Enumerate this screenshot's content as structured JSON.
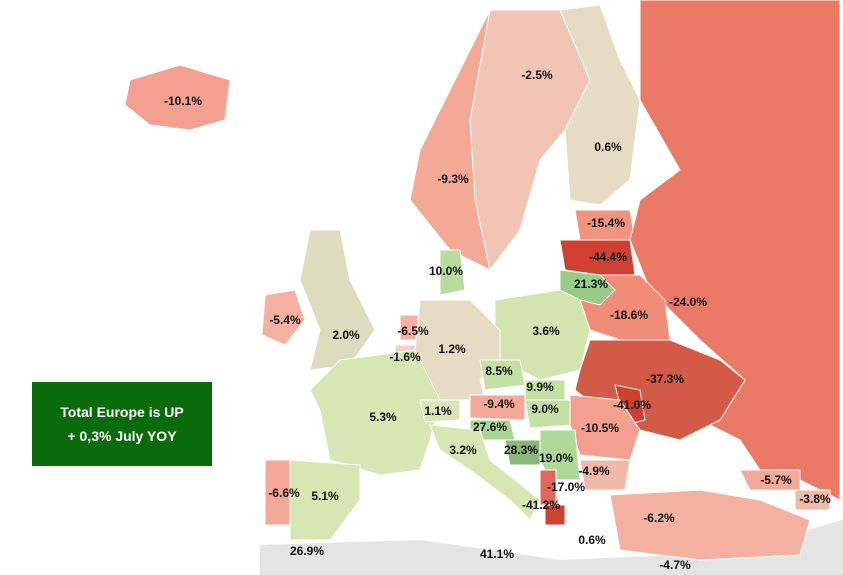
{
  "regions": [
    {
      "label": "-10.1%",
      "color": "#f4a090"
    },
    {
      "label": "-2.5%",
      "color": "#f2c4b4"
    },
    {
      "label": "0.6%",
      "color": "#e6dcc4"
    },
    {
      "label": "-9.3%",
      "color": "#f4a896"
    },
    {
      "label": "-15.4%",
      "color": "#f09480"
    },
    {
      "label": "-44.4%",
      "color": "#d04030"
    },
    {
      "label": "10.0%",
      "color": "#b8dca0"
    },
    {
      "label": "21.3%",
      "color": "#98cc88"
    },
    {
      "label": "-24.0%",
      "color": "#ea7a66"
    },
    {
      "label": "-18.6%",
      "color": "#f08c78"
    },
    {
      "label": "-5.4%",
      "color": "#f4b0a0"
    },
    {
      "label": "2.0%",
      "color": "#dedcbe"
    },
    {
      "label": "-6.5%",
      "color": "#f4b0a0"
    },
    {
      "label": "3.6%",
      "color": "#d4e4b0"
    },
    {
      "label": "-1.6%",
      "color": "#f2d0c4"
    },
    {
      "label": "1.2%",
      "color": "#e6dcc4"
    },
    {
      "label": "-37.3%",
      "color": "#d45a48"
    },
    {
      "label": "8.5%",
      "color": "#c4e0a4"
    },
    {
      "label": "9.9%",
      "color": "#c4e0a4"
    },
    {
      "label": "5.3%",
      "color": "#d8e6b4"
    },
    {
      "label": "1.1%",
      "color": "#dce4b8"
    },
    {
      "label": "-9.4%",
      "color": "#f4a898"
    },
    {
      "label": "9.0%",
      "color": "#c4e0a4"
    },
    {
      "label": "-41.0%",
      "color": "#cc4030"
    },
    {
      "label": "-10.5%",
      "color": "#f4a090"
    },
    {
      "label": "27.6%",
      "color": "#a8d494"
    },
    {
      "label": "3.2%",
      "color": "#d8e6b4"
    },
    {
      "label": "28.3%",
      "color": "#88b878"
    },
    {
      "label": "19.0%",
      "color": "#b0d898"
    },
    {
      "label": "-4.9%",
      "color": "#f2b8a8"
    },
    {
      "label": "-5.7%",
      "color": "#f4a898"
    },
    {
      "label": "-3.8%",
      "color": "#f2b8a8"
    },
    {
      "label": "-6.6%",
      "color": "#f4a898"
    },
    {
      "label": "5.1%",
      "color": "#d8e6b4"
    },
    {
      "label": "-17.0%",
      "color": "#e06858"
    },
    {
      "label": "-41.2%",
      "color": "#d04030"
    },
    {
      "label": "-6.2%",
      "color": "#f4b0a0"
    },
    {
      "label": "26.9%"
    },
    {
      "label": "41.1%"
    },
    {
      "label": "0.6%"
    },
    {
      "label": "-4.7%"
    }
  ],
  "summary": {
    "line1": "Total Europe is UP",
    "line2": "+ 0,3% July YOY"
  }
}
